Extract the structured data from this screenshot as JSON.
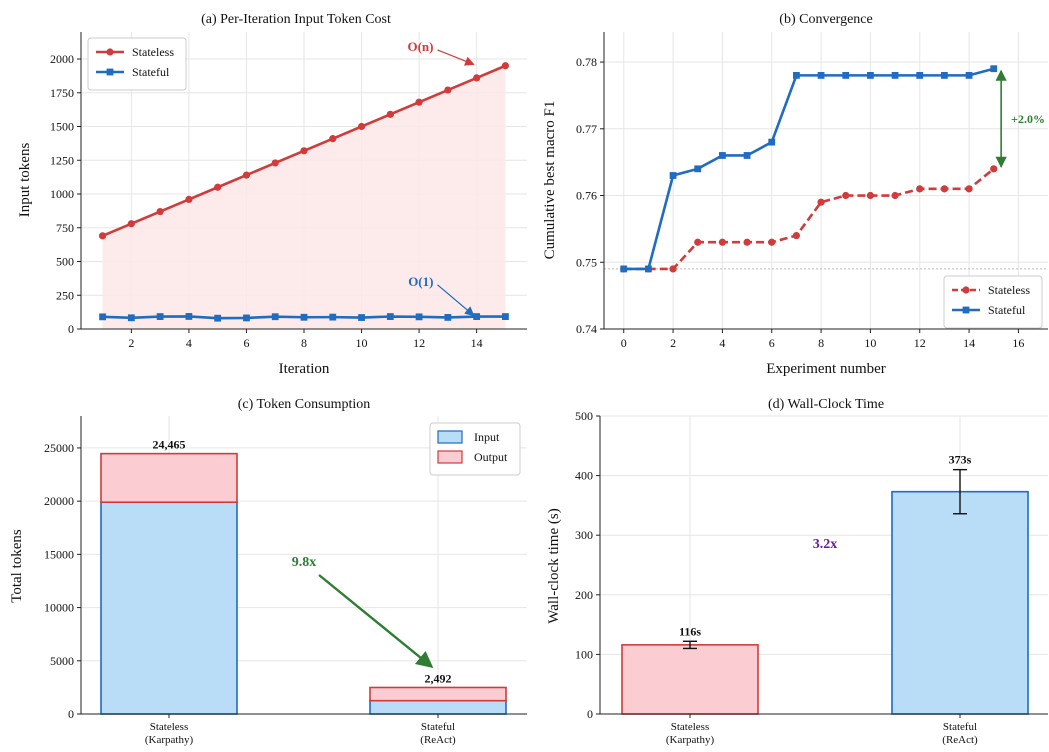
{
  "colors": {
    "stateless": "#d13b3b",
    "stateful": "#1f6cc0",
    "stateless_fill": "#fde8e8",
    "input_fill": "#b9dcf7",
    "output_fill": "#fbcdd2",
    "green": "#2e7d32",
    "purple": "#6a1b9a",
    "grid": "#e6e6e6"
  },
  "chart_data": [
    {
      "id": "a",
      "type": "line",
      "title": "(a) Per-Iteration Input Token Cost",
      "xlabel": "Iteration",
      "ylabel": "Input tokens",
      "xlim": [
        0.25,
        15.75
      ],
      "ylim": [
        0,
        2200
      ],
      "xticks": [
        2,
        4,
        6,
        8,
        10,
        12,
        14
      ],
      "yticks": [
        0,
        250,
        500,
        750,
        1000,
        1250,
        1500,
        1750,
        2000
      ],
      "x": [
        1,
        2,
        3,
        4,
        5,
        6,
        7,
        8,
        9,
        10,
        11,
        12,
        13,
        14,
        15
      ],
      "legend_position": "upper-left",
      "grid": true,
      "series": [
        {
          "name": "Stateless",
          "marker": "circle",
          "color_key": "stateless",
          "fill_under": true,
          "values": [
            690,
            780,
            870,
            960,
            1050,
            1140,
            1230,
            1320,
            1410,
            1500,
            1590,
            1680,
            1770,
            1860,
            1950
          ]
        },
        {
          "name": "Stateful",
          "marker": "square",
          "color_key": "stateful",
          "values": [
            90,
            83,
            92,
            93,
            80,
            82,
            91,
            87,
            88,
            85,
            92,
            90,
            86,
            92,
            92
          ]
        }
      ],
      "annotations": [
        {
          "text": "O(n)",
          "color_key": "stateless",
          "text_at": [
            12.5,
            2060
          ],
          "arrow_to": [
            13.9,
            1960
          ]
        },
        {
          "text": "O(1)",
          "color_key": "stateful",
          "text_at": [
            12.5,
            320
          ],
          "arrow_to": [
            13.9,
            100
          ]
        }
      ]
    },
    {
      "id": "b",
      "type": "line",
      "title": "(b) Convergence",
      "xlabel": "Experiment number",
      "ylabel": "Cumulative best macro F1",
      "xlim": [
        -0.8,
        17.2
      ],
      "ylim": [
        0.74,
        0.7845
      ],
      "xticks": [
        0,
        2,
        4,
        6,
        8,
        10,
        12,
        14,
        16
      ],
      "yticks": [
        0.74,
        0.75,
        0.76,
        0.77,
        0.78
      ],
      "x": [
        0,
        1,
        2,
        3,
        4,
        5,
        6,
        7,
        8,
        9,
        10,
        11,
        12,
        13,
        14,
        15
      ],
      "legend_position": "lower-right",
      "grid": true,
      "baseline": 0.749,
      "series": [
        {
          "name": "Stateless",
          "marker": "circle",
          "dashed": true,
          "color_key": "stateless",
          "values": [
            0.749,
            0.749,
            0.749,
            0.753,
            0.753,
            0.753,
            0.753,
            0.754,
            0.759,
            0.76,
            0.76,
            0.76,
            0.761,
            0.761,
            0.761,
            0.764
          ]
        },
        {
          "name": "Stateful",
          "marker": "square",
          "color_key": "stateful",
          "values": [
            0.749,
            0.749,
            0.763,
            0.764,
            0.766,
            0.766,
            0.768,
            0.778,
            0.778,
            0.778,
            0.778,
            0.778,
            0.778,
            0.778,
            0.778,
            0.779
          ]
        }
      ],
      "annotations": [
        {
          "text": "+2.0%",
          "color_key": "green",
          "x": 15.3,
          "from": 0.764,
          "to": 0.779
        }
      ]
    },
    {
      "id": "c",
      "type": "bar",
      "stacked": true,
      "title": "(c) Token Consumption",
      "xlabel": "",
      "ylabel": "Total tokens",
      "ylim": [
        0,
        28000
      ],
      "yticks": [
        0,
        5000,
        10000,
        15000,
        20000,
        25000
      ],
      "categories": [
        [
          "Stateless",
          "(Karpathy)"
        ],
        [
          "Stateful",
          "(ReAct)"
        ]
      ],
      "legend_position": "upper-right",
      "grid": true,
      "series": [
        {
          "name": "Input",
          "fill_key": "input_fill",
          "edge_key": "stateful",
          "values": [
            19900,
            1250
          ]
        },
        {
          "name": "Output",
          "fill_key": "output_fill",
          "edge_key": "stateless",
          "values": [
            4565,
            1242
          ]
        }
      ],
      "totals": [
        "24,465",
        "2,492"
      ],
      "annotations": [
        {
          "text": "9.8x",
          "color_key": "green"
        }
      ]
    },
    {
      "id": "d",
      "type": "bar",
      "title": "(d) Wall-Clock Time",
      "xlabel": "",
      "ylabel": "Wall-clock time (s)",
      "ylim": [
        0,
        500
      ],
      "yticks": [
        0,
        100,
        200,
        300,
        400,
        500
      ],
      "categories": [
        [
          "Stateless",
          "(Karpathy)"
        ],
        [
          "Stateful",
          "(ReAct)"
        ]
      ],
      "grid": true,
      "values": [
        116,
        373
      ],
      "errors": [
        6,
        37
      ],
      "fills": [
        "output_fill",
        "input_fill"
      ],
      "edges": [
        "stateless",
        "stateful"
      ],
      "value_labels": [
        "116s",
        "373s"
      ],
      "annotations": [
        {
          "text": "3.2x",
          "color_key": "purple"
        }
      ]
    }
  ]
}
